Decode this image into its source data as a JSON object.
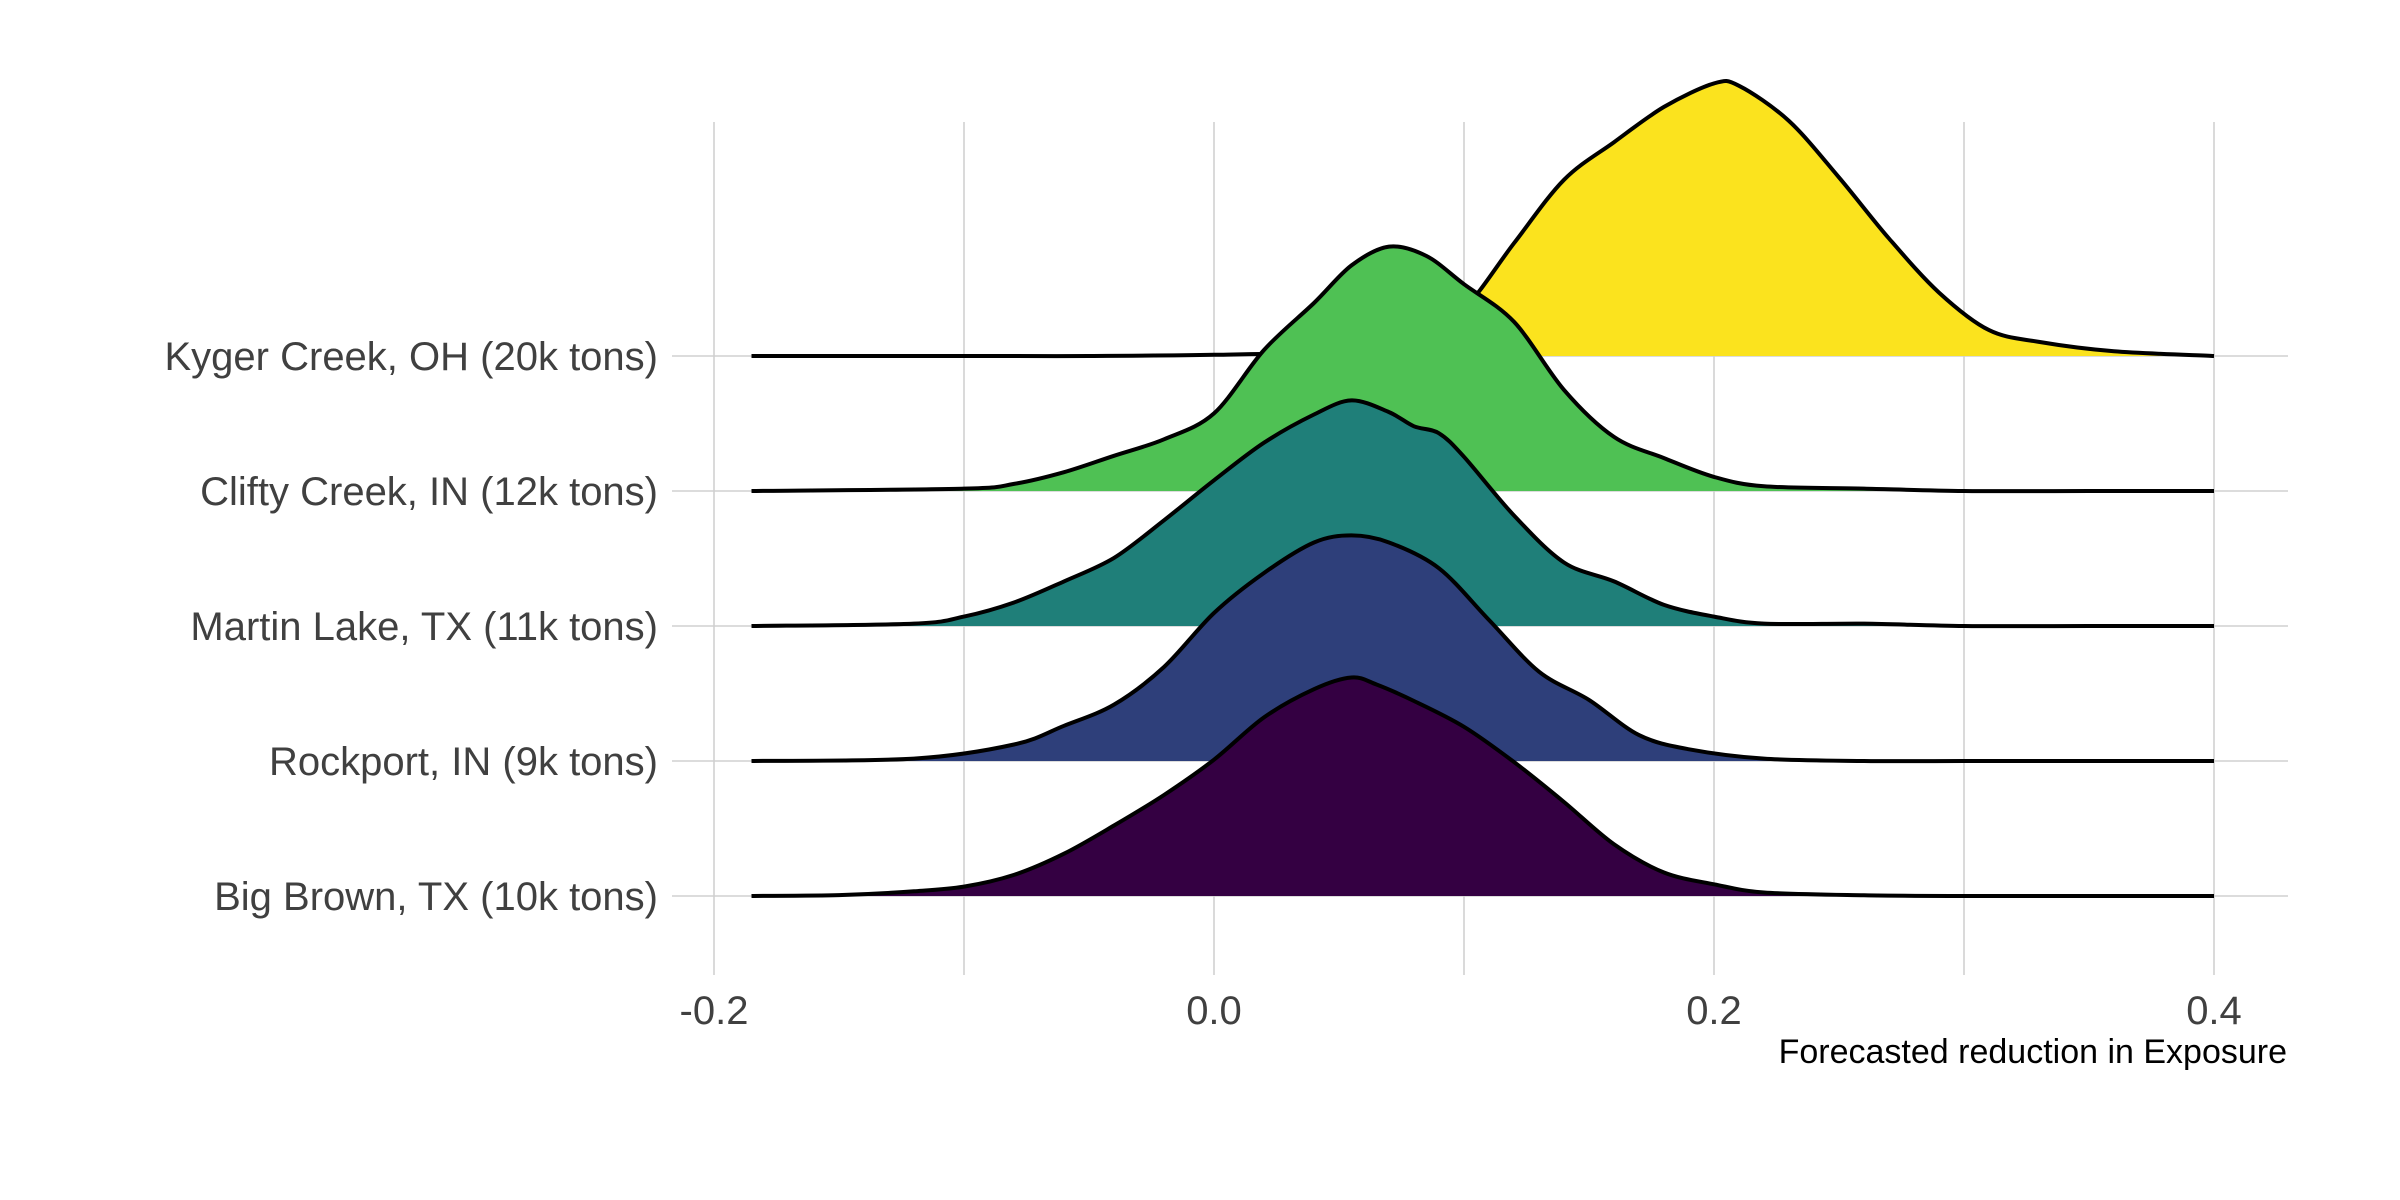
{
  "chart_data": {
    "type": "area",
    "subtype": "ridgeline",
    "title": "",
    "xlabel": "Forecasted reduction in Exposure",
    "ylabel": "",
    "xlim": [
      -0.23,
      0.43
    ],
    "x_ticks": [
      -0.2,
      0.0,
      0.2,
      0.4
    ],
    "x_tick_labels": [
      "-0.2",
      "0.0",
      "0.2",
      "0.4"
    ],
    "grid": true,
    "legend": "none",
    "x_range": [
      -0.185,
      0.4
    ],
    "series": [
      {
        "name": "Big Brown, TX (10k tons)",
        "color": "#340042",
        "x": [
          -0.185,
          -0.15,
          -0.12,
          -0.1,
          -0.08,
          -0.06,
          -0.04,
          -0.02,
          0.0,
          0.02,
          0.04,
          0.055,
          0.065,
          0.08,
          0.1,
          0.12,
          0.14,
          0.16,
          0.18,
          0.2,
          0.22,
          0.26,
          0.3,
          0.35,
          0.4
        ],
        "density": [
          0.0,
          0.004,
          0.02,
          0.04,
          0.09,
          0.18,
          0.3,
          0.43,
          0.58,
          0.76,
          0.88,
          0.93,
          0.9,
          0.83,
          0.72,
          0.57,
          0.4,
          0.22,
          0.1,
          0.05,
          0.015,
          0.003,
          0.0,
          0.0,
          0.0
        ]
      },
      {
        "name": "Rockport, IN (9k tons)",
        "color": "#2e3f7a",
        "x": [
          -0.185,
          -0.12,
          -0.08,
          -0.06,
          -0.04,
          -0.02,
          0.0,
          0.02,
          0.04,
          0.055,
          0.07,
          0.09,
          0.11,
          0.13,
          0.15,
          0.17,
          0.19,
          0.22,
          0.26,
          0.3,
          0.35,
          0.4
        ],
        "density": [
          0.0,
          0.01,
          0.07,
          0.15,
          0.24,
          0.4,
          0.63,
          0.8,
          0.93,
          0.96,
          0.93,
          0.82,
          0.6,
          0.38,
          0.26,
          0.11,
          0.05,
          0.01,
          0.0,
          0.0,
          0.0,
          0.0
        ]
      },
      {
        "name": "Martin Lake, TX (11k tons)",
        "color": "#1f7f79",
        "x": [
          -0.185,
          -0.12,
          -0.1,
          -0.08,
          -0.06,
          -0.04,
          -0.02,
          0.0,
          0.02,
          0.04,
          0.055,
          0.07,
          0.08,
          0.09,
          0.1,
          0.12,
          0.14,
          0.16,
          0.18,
          0.2,
          0.22,
          0.26,
          0.3,
          0.35,
          0.4
        ],
        "density": [
          0.0,
          0.01,
          0.04,
          0.1,
          0.19,
          0.29,
          0.45,
          0.62,
          0.78,
          0.9,
          0.96,
          0.91,
          0.85,
          0.82,
          0.72,
          0.47,
          0.27,
          0.19,
          0.09,
          0.04,
          0.01,
          0.01,
          0.0,
          0.0,
          0.0
        ]
      },
      {
        "name": "Clifty Creek, IN (12k tons)",
        "color": "#4fc154",
        "x": [
          -0.185,
          -0.1,
          -0.08,
          -0.06,
          -0.04,
          -0.02,
          0.0,
          0.02,
          0.04,
          0.055,
          0.07,
          0.085,
          0.1,
          0.12,
          0.14,
          0.16,
          0.18,
          0.2,
          0.22,
          0.26,
          0.3,
          0.35,
          0.4
        ],
        "density": [
          0.0,
          0.01,
          0.03,
          0.08,
          0.15,
          0.22,
          0.33,
          0.6,
          0.8,
          0.96,
          1.04,
          1.0,
          0.88,
          0.72,
          0.43,
          0.23,
          0.14,
          0.06,
          0.02,
          0.01,
          0.0,
          0.0,
          0.0
        ]
      },
      {
        "name": "Kyger Creek, OH (20k tons)",
        "color": "#fbe31e",
        "x": [
          -0.185,
          -0.1,
          -0.05,
          0.0,
          0.05,
          0.08,
          0.1,
          0.12,
          0.14,
          0.16,
          0.18,
          0.2,
          0.21,
          0.23,
          0.25,
          0.27,
          0.29,
          0.31,
          0.33,
          0.36,
          0.4
        ],
        "density": [
          0.0,
          0.0,
          0.0,
          0.005,
          0.02,
          0.06,
          0.2,
          0.48,
          0.75,
          0.91,
          1.06,
          1.16,
          1.15,
          1.0,
          0.76,
          0.5,
          0.27,
          0.11,
          0.06,
          0.02,
          0.0
        ]
      }
    ]
  }
}
